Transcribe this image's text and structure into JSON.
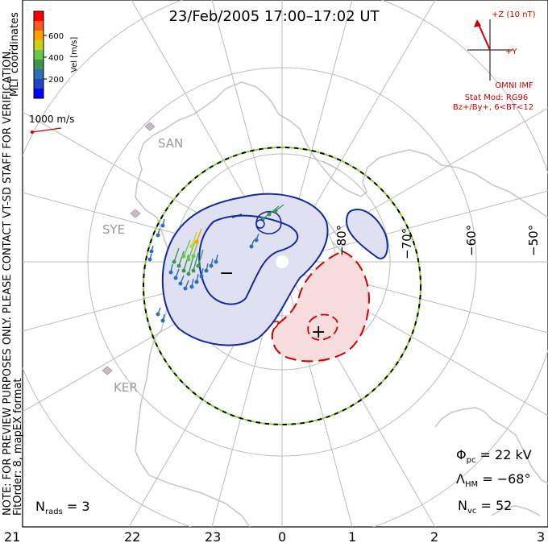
{
  "title": "23/Feb/2005 17:00–17:02 UT",
  "colorbar": {
    "label": "Vel [m/s]",
    "ticks": [
      "600",
      "400",
      "200"
    ],
    "colors": [
      "#ff0000",
      "#ff5a1e",
      "#ffa000",
      "#c8d21e",
      "#6ec846",
      "#3c9650",
      "#2e6eb4",
      "#1e46c8",
      "#0000ff"
    ]
  },
  "coords_label": "MLT coordinates",
  "scale_label": "1000 m/s",
  "side_note": "NOTE: FOR PREVIEW PURPOSES ONLY. PLEASE CONTACT VT-SD STAFF FOR VERIFICATION.",
  "fit_order": "FitOrder: 8, mapEX format",
  "imf": {
    "scale": "+Z (10 nT)",
    "y": "+Y",
    "source": "OMNI IMF",
    "model": "Stat Mod: RG96",
    "conditions": "Bz+/By+, 6<BT<12"
  },
  "stats": {
    "phi_symbol": "Φ",
    "phi_sub": "pc",
    "phi_value": " = 22 kV",
    "lam_symbol": "Λ",
    "lam_sub": "HM",
    "lam_value": " = −68°",
    "nvc_symbol": "N",
    "nvc_sub": "vc",
    "nvc_value": " = 52",
    "nrads_symbol": "N",
    "nrads_sub": "rads",
    "nrads_value": " = 3"
  },
  "latitude_labels": [
    "−80°",
    "−70°",
    "−60°",
    "−50°"
  ],
  "mlt_labels": [
    "21",
    "22",
    "23",
    "0",
    "1",
    "2",
    "3"
  ],
  "sites": [
    "SAN",
    "SYE",
    "KER"
  ],
  "potential_extrema": {
    "min": "−",
    "max": "+"
  },
  "colors": {
    "negative_cell": "#1428a0",
    "positive_cell": "#cc0000",
    "hm_boundary_a": "#000000",
    "hm_boundary_b": "#7ed321",
    "coastline": "#c8c8c8"
  }
}
